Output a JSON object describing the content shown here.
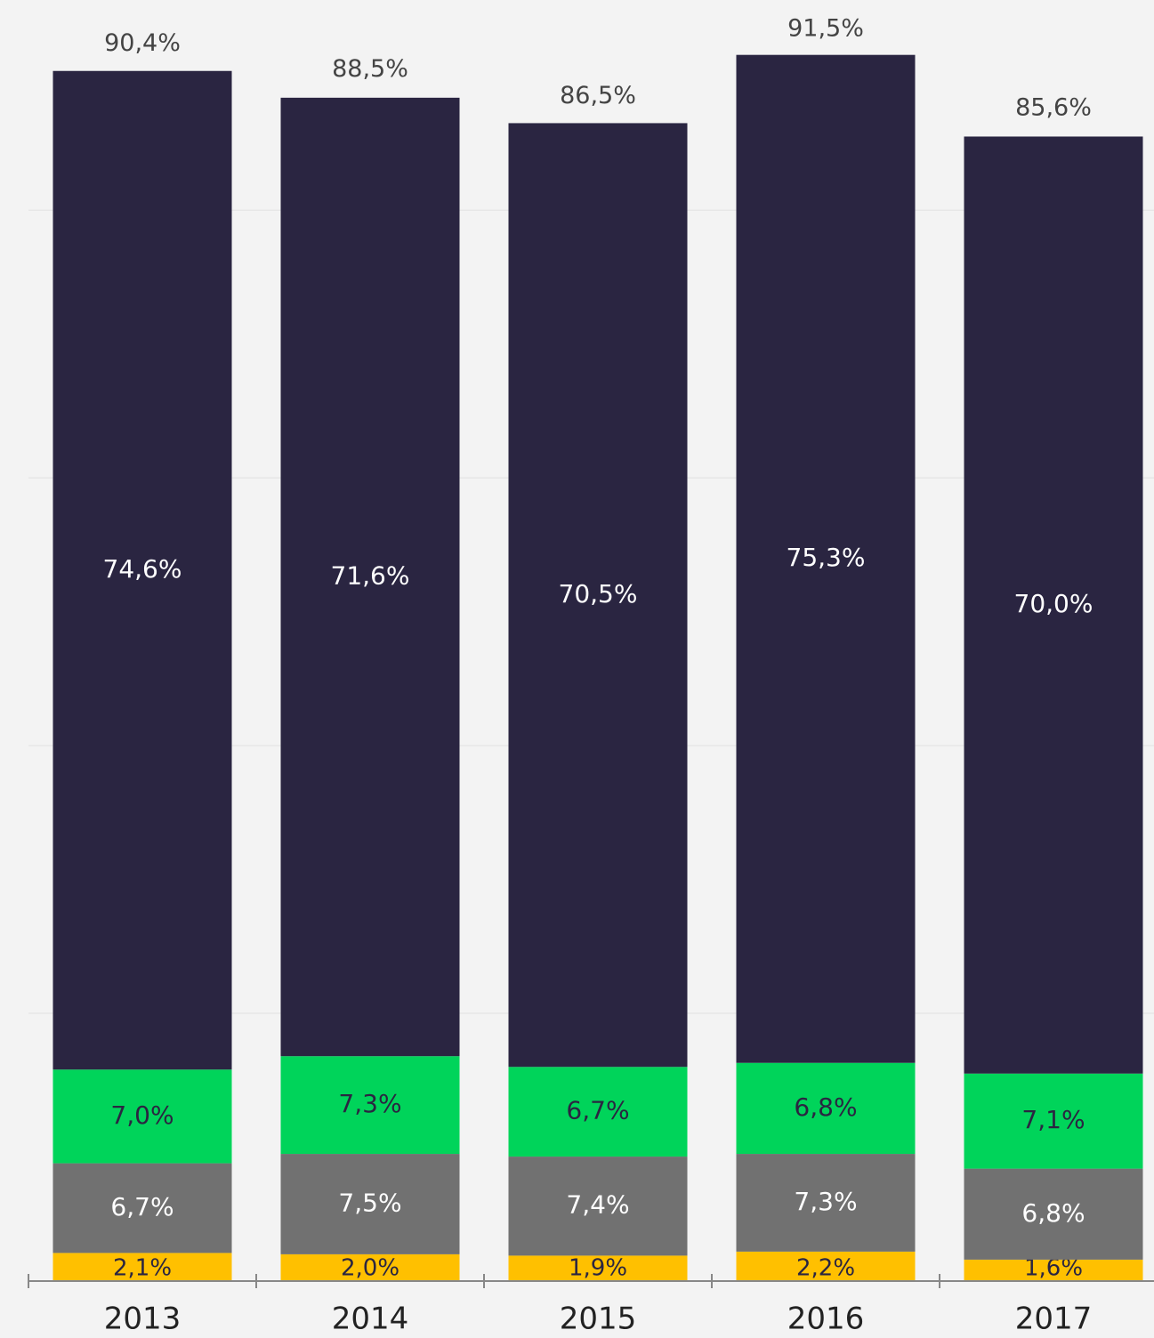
{
  "chart_data": {
    "type": "stacked_bar",
    "categories": [
      "2013",
      "2014",
      "2015",
      "2016",
      "2017"
    ],
    "series": [
      {
        "color": "#ffc000",
        "text_color": "#2a2541",
        "values": [
          2.1,
          2.0,
          1.9,
          2.2,
          1.6
        ],
        "value_labels": [
          "2,1%",
          "2,0%",
          "1,9%",
          "2,2%",
          "1,6%"
        ]
      },
      {
        "color": "#717171",
        "text_color": "#ffffff",
        "values": [
          6.7,
          7.5,
          7.4,
          7.3,
          6.8
        ],
        "value_labels": [
          "6,7%",
          "7,5%",
          "7,4%",
          "7,3%",
          "6,8%"
        ]
      },
      {
        "color": "#00d45a",
        "text_color": "#2a2541",
        "values": [
          7.0,
          7.3,
          6.7,
          6.8,
          7.1
        ],
        "value_labels": [
          "7,0%",
          "7,3%",
          "6,7%",
          "6,8%",
          "7,1%"
        ]
      },
      {
        "color": "#2a2541",
        "text_color": "#ffffff",
        "values": [
          74.6,
          71.6,
          70.5,
          75.3,
          70.0
        ],
        "value_labels": [
          "74,6%",
          "71,6%",
          "70,5%",
          "75,3%",
          "70,0%"
        ]
      }
    ],
    "totals": [
      90.4,
      88.5,
      86.5,
      91.5,
      85.6
    ],
    "total_labels": [
      "90,4%",
      "88,5%",
      "86,5%",
      "91,5%",
      "85,6%"
    ],
    "ylim": [
      0,
      95.7
    ],
    "yticks": [
      20,
      40,
      60,
      80
    ],
    "grid": true
  }
}
